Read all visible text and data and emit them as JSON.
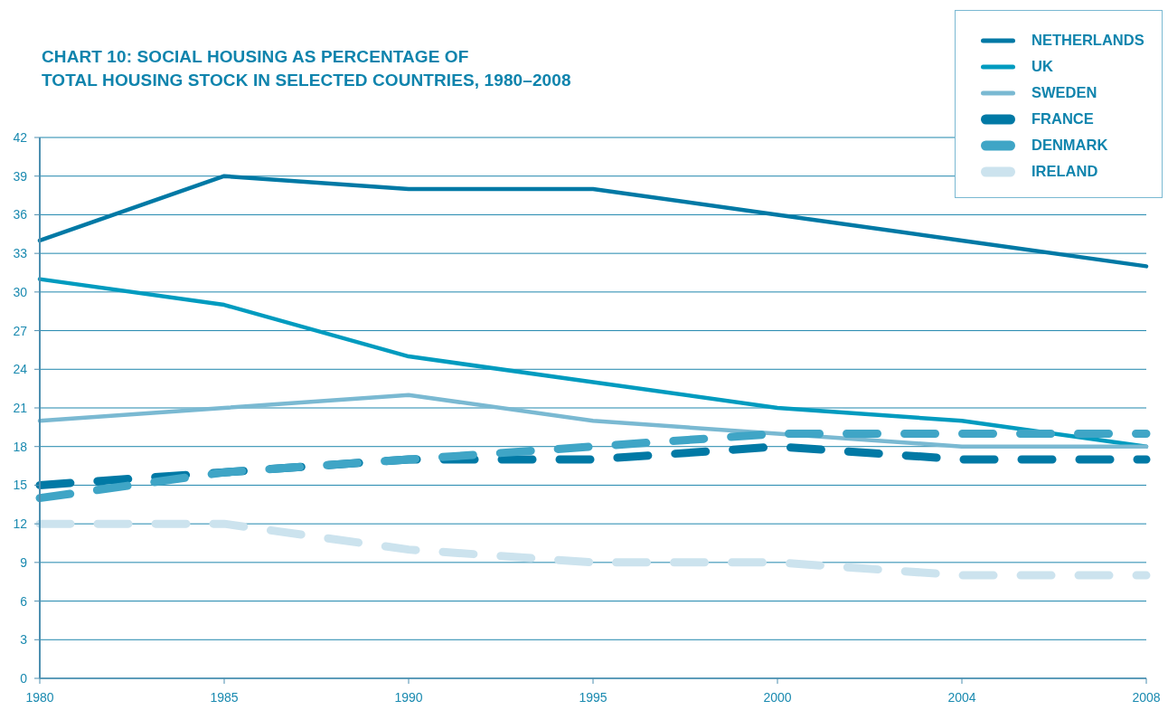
{
  "chart_data": {
    "type": "line",
    "title": "CHART 10: SOCIAL HOUSING AS PERCENTAGE OF\nTOTAL HOUSING STOCK IN SELECTED COUNTRIES, 1980–2008",
    "categories": [
      "1980",
      "1985",
      "1990",
      "1995",
      "2000",
      "2004",
      "2008"
    ],
    "series": [
      {
        "name": "NETHERLANDS",
        "color": "#0079a5",
        "line_style": "solid",
        "values": [
          34,
          39,
          38,
          38,
          36,
          34,
          32
        ]
      },
      {
        "name": "UK",
        "color": "#009bbf",
        "line_style": "solid",
        "values": [
          31,
          29,
          25,
          23,
          21,
          20,
          18
        ]
      },
      {
        "name": "SWEDEN",
        "color": "#7ab9d2",
        "line_style": "solid",
        "values": [
          20,
          21,
          22,
          20,
          19,
          18,
          18
        ]
      },
      {
        "name": "FRANCE",
        "color": "#0079a5",
        "line_style": "dashed",
        "values": [
          15,
          16,
          17,
          17,
          18,
          17,
          17
        ]
      },
      {
        "name": "DENMARK",
        "color": "#3fa5c6",
        "line_style": "dashed",
        "values": [
          14,
          16,
          17,
          18,
          19,
          19,
          19
        ]
      },
      {
        "name": "IRELAND",
        "color": "#cce3ee",
        "line_style": "dashed",
        "values": [
          12,
          12,
          10,
          9,
          9,
          8,
          8
        ]
      }
    ],
    "ylim": [
      0,
      42
    ],
    "yticks": [
      0,
      3,
      6,
      9,
      12,
      15,
      18,
      21,
      24,
      27,
      30,
      33,
      36,
      39,
      42
    ],
    "grid": "y",
    "legend": "top right"
  }
}
